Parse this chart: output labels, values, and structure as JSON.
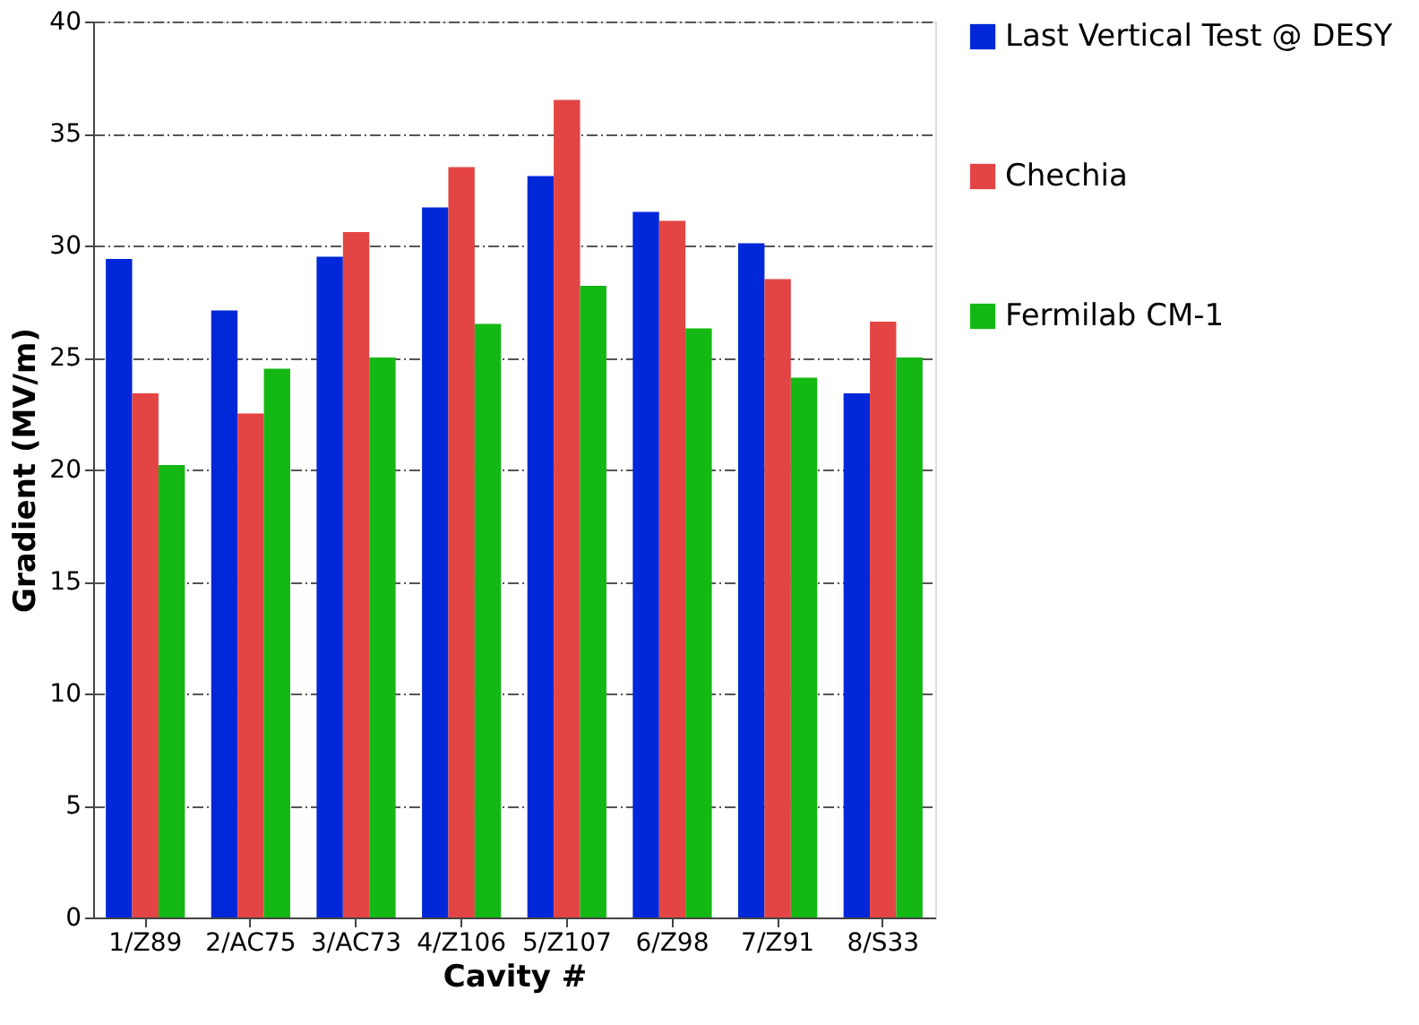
{
  "chart_data": {
    "type": "bar",
    "xlabel": "Cavity #",
    "ylabel": "Gradient (MV/m)",
    "categories": [
      "1/Z89",
      "2/AC75",
      "3/AC73",
      "4/Z106",
      "5/Z107",
      "6/Z98",
      "7/Z91",
      "8/S33"
    ],
    "series": [
      {
        "name": "Last Vertical Test @ DESY",
        "color": "#0028d8",
        "values": [
          29.4,
          27.1,
          29.5,
          31.7,
          33.1,
          31.5,
          30.1,
          23.4
        ]
      },
      {
        "name": "Chechia",
        "color": "#e34444",
        "values": [
          23.4,
          22.5,
          30.6,
          33.5,
          36.5,
          31.1,
          28.5,
          26.6
        ]
      },
      {
        "name": "Fermilab CM-1",
        "color": "#14b814",
        "values": [
          20.2,
          24.5,
          25.0,
          26.5,
          28.2,
          26.3,
          24.1,
          25.0
        ]
      }
    ],
    "ylim": [
      0,
      40
    ],
    "yticks": [
      0,
      5,
      10,
      15,
      20,
      25,
      30,
      35,
      40
    ],
    "grid": "y",
    "legend": "right"
  }
}
